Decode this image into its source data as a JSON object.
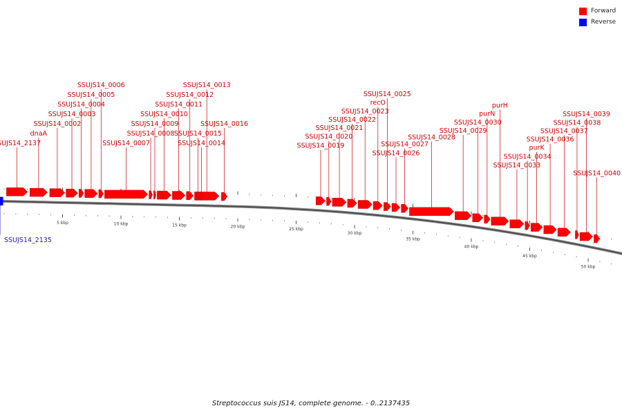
{
  "legend": {
    "forward": {
      "label": "Forward",
      "color": "#ff0000"
    },
    "reverse": {
      "label": "Reverse",
      "color": "#0000ff"
    }
  },
  "caption": "Streptococcus suis JS14, complete genome. - 0..2137435",
  "scale": {
    "unit_labels": [
      "5 kbp",
      "10 kbp",
      "15 kbp",
      "20 kbp",
      "25 kbp",
      "30 kbp",
      "35 kbp",
      "40 kbp",
      "45 kbp",
      "50 kbp"
    ]
  },
  "genes": [
    {
      "label": "SSUJS14_2137",
      "strand": "forward",
      "start_kbp": 0.2,
      "end_kbp": 2.0
    },
    {
      "label": "dnaA",
      "strand": "forward",
      "start_kbp": 2.2,
      "end_kbp": 3.7
    },
    {
      "label": "SSUJS14_0002",
      "strand": "forward",
      "start_kbp": 3.9,
      "end_kbp": 5.2
    },
    {
      "label": "SSUJS14_0003",
      "strand": "forward",
      "start_kbp": 5.3,
      "end_kbp": 6.3
    },
    {
      "label": "SSUJS14_0004",
      "strand": "forward",
      "start_kbp": 6.4,
      "end_kbp": 6.8
    },
    {
      "label": "SSUJS14_0005",
      "strand": "forward",
      "start_kbp": 6.9,
      "end_kbp": 8.0
    },
    {
      "label": "SSUJS14_0006",
      "strand": "forward",
      "start_kbp": 8.1,
      "end_kbp": 8.5
    },
    {
      "label": "SSUJS14_0007",
      "strand": "forward",
      "start_kbp": 8.6,
      "end_kbp": 12.3
    },
    {
      "label": "SSUJS14_0008",
      "strand": "forward",
      "start_kbp": 12.4,
      "end_kbp": 12.7
    },
    {
      "label": "SSUJS14_0009",
      "strand": "forward",
      "start_kbp": 12.8,
      "end_kbp": 13.0
    },
    {
      "label": "SSUJS14_0010",
      "strand": "forward",
      "start_kbp": 13.1,
      "end_kbp": 14.3
    },
    {
      "label": "SSUJS14_0011",
      "strand": "forward",
      "start_kbp": 14.4,
      "end_kbp": 15.5
    },
    {
      "label": "SSUJS14_0012",
      "strand": "forward",
      "start_kbp": 15.6,
      "end_kbp": 16.2
    },
    {
      "label": "SSUJS14_0013",
      "strand": "forward",
      "start_kbp": 16.3,
      "end_kbp": 18.4
    },
    {
      "label": "SSUJS14_0014",
      "strand": "forward",
      "start_kbp": 16.8,
      "end_kbp": 17.0
    },
    {
      "label": "SSUJS14_0015",
      "strand": "forward",
      "start_kbp": 16.5,
      "end_kbp": 16.7
    },
    {
      "label": "SSUJS14_0016",
      "strand": "forward",
      "start_kbp": 18.6,
      "end_kbp": 19.1
    },
    {
      "label": "SSUJS14_0019",
      "strand": "forward",
      "start_kbp": 26.7,
      "end_kbp": 27.5
    },
    {
      "label": "SSUJS14_0020",
      "strand": "forward",
      "start_kbp": 27.6,
      "end_kbp": 28.0
    },
    {
      "label": "SSUJS14_0021",
      "strand": "forward",
      "start_kbp": 28.1,
      "end_kbp": 29.3
    },
    {
      "label": "SSUJS14_0022",
      "strand": "forward",
      "start_kbp": 29.4,
      "end_kbp": 30.2
    },
    {
      "label": "SSUJS14_0023",
      "strand": "forward",
      "start_kbp": 30.3,
      "end_kbp": 31.5
    },
    {
      "label": "recO",
      "strand": "forward",
      "start_kbp": 31.6,
      "end_kbp": 32.4
    },
    {
      "label": "SSUJS14_0025",
      "strand": "forward",
      "start_kbp": 32.5,
      "end_kbp": 33.1
    },
    {
      "label": "SSUJS14_0026",
      "strand": "forward",
      "start_kbp": 33.2,
      "end_kbp": 33.9
    },
    {
      "label": "SSUJS14_0027",
      "strand": "forward",
      "start_kbp": 34.0,
      "end_kbp": 34.6
    },
    {
      "label": "SSUJS14_0028",
      "strand": "forward",
      "start_kbp": 34.7,
      "end_kbp": 38.5
    },
    {
      "label": "SSUJS14_0029",
      "strand": "forward",
      "start_kbp": 38.6,
      "end_kbp": 40.0
    },
    {
      "label": "SSUJS14_0030",
      "strand": "forward",
      "start_kbp": 40.1,
      "end_kbp": 41.0
    },
    {
      "label": "purN",
      "strand": "forward",
      "start_kbp": 41.1,
      "end_kbp": 41.6
    },
    {
      "label": "purH",
      "strand": "forward",
      "start_kbp": 41.7,
      "end_kbp": 43.2
    },
    {
      "label": "SSUJS14_0033",
      "strand": "forward",
      "start_kbp": 43.3,
      "end_kbp": 44.5
    },
    {
      "label": "SSUJS14_0034",
      "strand": "forward",
      "start_kbp": 44.6,
      "end_kbp": 45.0
    },
    {
      "label": "purK",
      "strand": "forward",
      "start_kbp": 45.1,
      "end_kbp": 46.1
    },
    {
      "label": "SSUJS14_0036",
      "strand": "forward",
      "start_kbp": 46.2,
      "end_kbp": 47.3
    },
    {
      "label": "SSUJS14_0037",
      "strand": "forward",
      "start_kbp": 47.4,
      "end_kbp": 48.5
    },
    {
      "label": "SSUJS14_0038",
      "strand": "forward",
      "start_kbp": 48.9,
      "end_kbp": 49.2
    },
    {
      "label": "SSUJS14_0039",
      "strand": "forward",
      "start_kbp": 49.3,
      "end_kbp": 50.4
    },
    {
      "label": "SSUJS14_0040",
      "strand": "forward",
      "start_kbp": 50.5,
      "end_kbp": 51.0
    },
    {
      "label": "SSUJS14_2135",
      "strand": "reverse",
      "start_kbp": -0.6,
      "end_kbp": -0.1
    }
  ]
}
